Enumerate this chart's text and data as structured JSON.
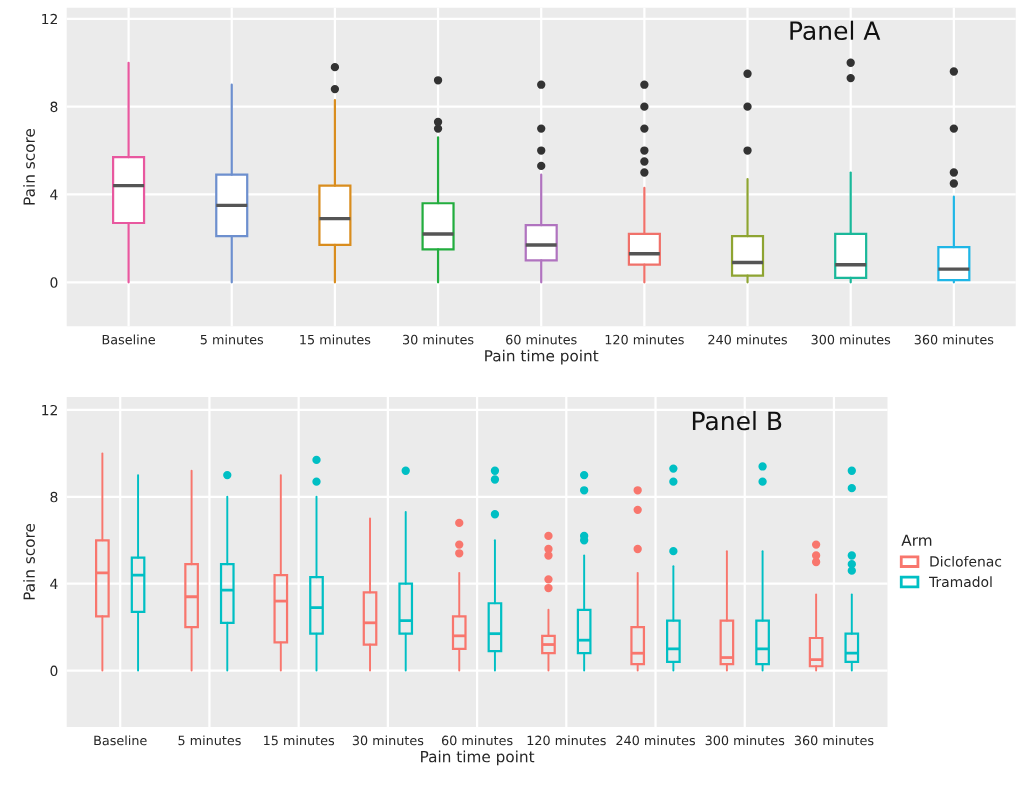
{
  "chart_data": [
    {
      "type": "box",
      "xlabel": "Pain time point",
      "ylabel": "Pain score",
      "annotations": [
        "Panel A"
      ],
      "categories": [
        "Baseline",
        "5 minutes",
        "15 minutes",
        "30 minutes",
        "60 minutes",
        "120 minutes",
        "240 minutes",
        "300 minutes",
        "360 minutes"
      ],
      "colors": [
        "#e8589f",
        "#6d8fce",
        "#d98d1e",
        "#22ad3e",
        "#b073bf",
        "#f0716a",
        "#8ea432",
        "#1ab89a",
        "#1fb6e6"
      ],
      "boxes": [
        {
          "low": 0,
          "q1": 2.7,
          "median": 4.4,
          "q3": 5.7,
          "high": 10
        },
        {
          "low": 0,
          "q1": 2.1,
          "median": 3.5,
          "q3": 4.9,
          "high": 9
        },
        {
          "low": 0,
          "q1": 1.7,
          "median": 2.9,
          "q3": 4.4,
          "high": 8.3,
          "outliers": [
            8.8,
            9.8
          ]
        },
        {
          "low": 0,
          "q1": 1.5,
          "median": 2.2,
          "q3": 3.6,
          "high": 6.6,
          "outliers": [
            7,
            7.3,
            9.2
          ]
        },
        {
          "low": 0,
          "q1": 1,
          "median": 1.7,
          "q3": 2.6,
          "high": 4.9,
          "outliers": [
            5.3,
            6,
            7,
            9
          ]
        },
        {
          "low": 0,
          "q1": 0.8,
          "median": 1.3,
          "q3": 2.2,
          "high": 4.3,
          "outliers": [
            5,
            5.5,
            6,
            7,
            8,
            9
          ]
        },
        {
          "low": 0,
          "q1": 0.3,
          "median": 0.9,
          "q3": 2.1,
          "high": 4.7,
          "outliers": [
            6,
            8,
            9.5
          ]
        },
        {
          "low": 0,
          "q1": 0.2,
          "median": 0.8,
          "q3": 2.2,
          "high": 5,
          "outliers": [
            9.3,
            10
          ]
        },
        {
          "low": 0,
          "q1": 0.1,
          "median": 0.6,
          "q3": 1.6,
          "high": 3.9,
          "outliers": [
            4.5,
            5,
            7,
            9.6
          ]
        }
      ],
      "ylim": [
        -2,
        12.5
      ],
      "yticks": [
        0,
        4,
        8,
        12
      ],
      "grid": true
    },
    {
      "type": "box",
      "xlabel": "Pain time point",
      "ylabel": "Pain score",
      "annotations": [
        "Panel B"
      ],
      "legend_title": "Arm",
      "legend": "right",
      "categories": [
        "Baseline",
        "5 minutes",
        "15 minutes",
        "30 minutes",
        "60 minutes",
        "120 minutes",
        "240 minutes",
        "300 minutes",
        "360 minutes"
      ],
      "series": [
        {
          "name": "Diclofenac",
          "color": "#f8766d",
          "boxes": [
            {
              "low": 0,
              "q1": 2.5,
              "median": 4.5,
              "q3": 6,
              "high": 10
            },
            {
              "low": 0,
              "q1": 2,
              "median": 3.4,
              "q3": 4.9,
              "high": 9.2
            },
            {
              "low": 0,
              "q1": 1.3,
              "median": 3.2,
              "q3": 4.4,
              "high": 9
            },
            {
              "low": 0,
              "q1": 1.2,
              "median": 2.2,
              "q3": 3.6,
              "high": 7
            },
            {
              "low": 0,
              "q1": 1,
              "median": 1.6,
              "q3": 2.5,
              "high": 4.5,
              "outliers": [
                5.4,
                5.8,
                6.8
              ]
            },
            {
              "low": 0,
              "q1": 0.8,
              "median": 1.2,
              "q3": 1.6,
              "high": 2.8,
              "outliers": [
                3.8,
                4.2,
                5.3,
                5.6,
                6.2
              ]
            },
            {
              "low": 0,
              "q1": 0.3,
              "median": 0.8,
              "q3": 2,
              "high": 4.5,
              "outliers": [
                5.6,
                7.4,
                8.3
              ]
            },
            {
              "low": 0,
              "q1": 0.3,
              "median": 0.6,
              "q3": 2.3,
              "high": 5.5
            },
            {
              "low": 0,
              "q1": 0.2,
              "median": 0.5,
              "q3": 1.5,
              "high": 3.5,
              "outliers": [
                5,
                5.3,
                5.8
              ]
            }
          ]
        },
        {
          "name": "Tramadol",
          "color": "#00bfc4",
          "boxes": [
            {
              "low": 0,
              "q1": 2.7,
              "median": 4.4,
              "q3": 5.2,
              "high": 9
            },
            {
              "low": 0,
              "q1": 2.2,
              "median": 3.7,
              "q3": 4.9,
              "high": 8,
              "outliers": [
                9
              ]
            },
            {
              "low": 0,
              "q1": 1.7,
              "median": 2.9,
              "q3": 4.3,
              "high": 8,
              "outliers": [
                8.7,
                9.7
              ]
            },
            {
              "low": 0,
              "q1": 1.7,
              "median": 2.3,
              "q3": 4,
              "high": 7.3,
              "outliers": [
                9.2
              ]
            },
            {
              "low": 0,
              "q1": 0.9,
              "median": 1.7,
              "q3": 3.1,
              "high": 6,
              "outliers": [
                7.2,
                8.8,
                9.2
              ]
            },
            {
              "low": 0,
              "q1": 0.8,
              "median": 1.4,
              "q3": 2.8,
              "high": 5.3,
              "outliers": [
                6,
                6.2,
                8.3,
                9
              ]
            },
            {
              "low": 0,
              "q1": 0.4,
              "median": 1,
              "q3": 2.3,
              "high": 4.8,
              "outliers": [
                5.5,
                8.7,
                9.3
              ]
            },
            {
              "low": 0,
              "q1": 0.3,
              "median": 1,
              "q3": 2.3,
              "high": 5.5,
              "outliers": [
                8.7,
                9.4
              ]
            },
            {
              "low": 0,
              "q1": 0.4,
              "median": 0.8,
              "q3": 1.7,
              "high": 3.5,
              "outliers": [
                4.6,
                4.9,
                5.3,
                8.4,
                9.2
              ]
            }
          ]
        }
      ],
      "ylim": [
        -2.6,
        12.6
      ],
      "yticks": [
        0,
        4,
        8,
        12
      ],
      "grid": true
    }
  ]
}
